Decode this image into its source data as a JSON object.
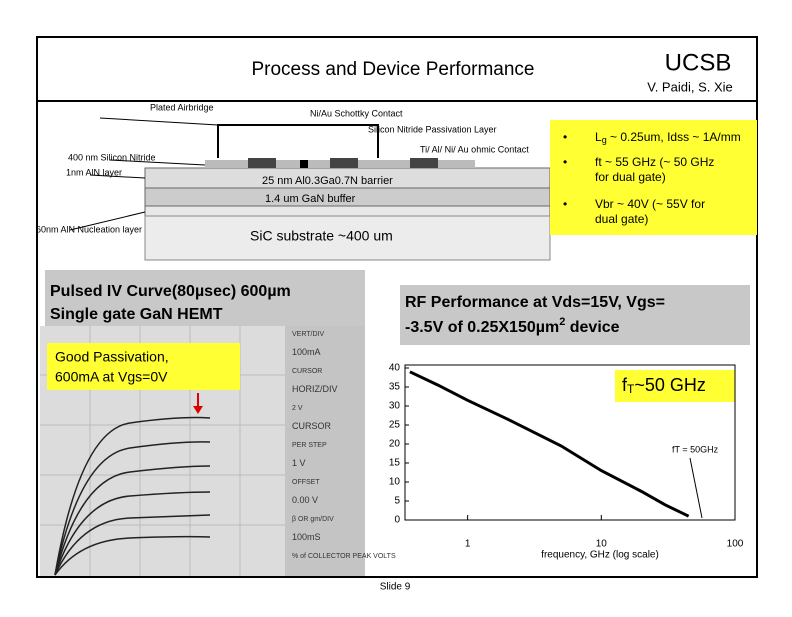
{
  "header": {
    "title": "Process and Device Performance",
    "org": "UCSB",
    "authors": "V. Paidi, S. Xie"
  },
  "device": {
    "labels": [
      "Plated Airbridge",
      "Ni/Au Schottky Contact",
      "Silicon Nitride Passivation Layer",
      "Ti/ Al/ Ni/ Au ohmic Contact",
      "400 nm Silicon Nitride",
      "1nm AlN layer",
      "60nm AlN Nucleation layer"
    ],
    "layers": [
      "25 nm Al0.3Ga0.7N barrier",
      "1.4 um GaN buffer",
      "SiC substrate ~400 um"
    ]
  },
  "bullets": [
    [
      "L",
      "g",
      " ~ 0.25um, Idss ~  1A/mm"
    ],
    [
      "ft ~ 55 GHz (~ 50 GHz for dual gate)"
    ],
    [
      "Vbr ~ 40V (~ 55V for dual gate)"
    ]
  ],
  "iv": {
    "title": [
      "Pulsed IV Curve(80µsec) 600µm",
      "Single gate GaN HEMT"
    ],
    "note": [
      "Good Passivation,",
      "600mA at Vgs=0V"
    ],
    "panel": [
      "VERT/DIV",
      "100mA",
      "CURSOR",
      "HORIZ/DIV",
      "2 V",
      "CURSOR",
      "PER STEP",
      "1 V",
      "OFFSET",
      "0.00 V",
      "β OR gm/DIV",
      "100mS",
      "% of COLLECTOR PEAK VOLTS"
    ]
  },
  "rf": {
    "title": [
      "RF Performance at Vds=15V, Vgs=",
      "-3.5V of 0.25X150µm",
      "2",
      " device"
    ],
    "callout": [
      "f",
      "T",
      "~50 GHz"
    ],
    "annotation": "fT = 50GHz",
    "xlabel": "frequency, GHz (log scale)",
    "x": [
      0.37,
      0.6,
      1,
      2,
      5,
      10,
      20,
      30,
      45
    ],
    "values": [
      39,
      35.5,
      31.5,
      26.5,
      19.5,
      13,
      7.5,
      4,
      1
    ],
    "xlim": [
      0.34,
      100
    ],
    "ylim": [
      0,
      40
    ],
    "yticks": [
      0,
      5,
      10,
      15,
      20,
      25,
      30,
      35,
      40
    ],
    "xticks": [
      1,
      10,
      100
    ],
    "log_x": true
  },
  "footer": "Slide 9"
}
